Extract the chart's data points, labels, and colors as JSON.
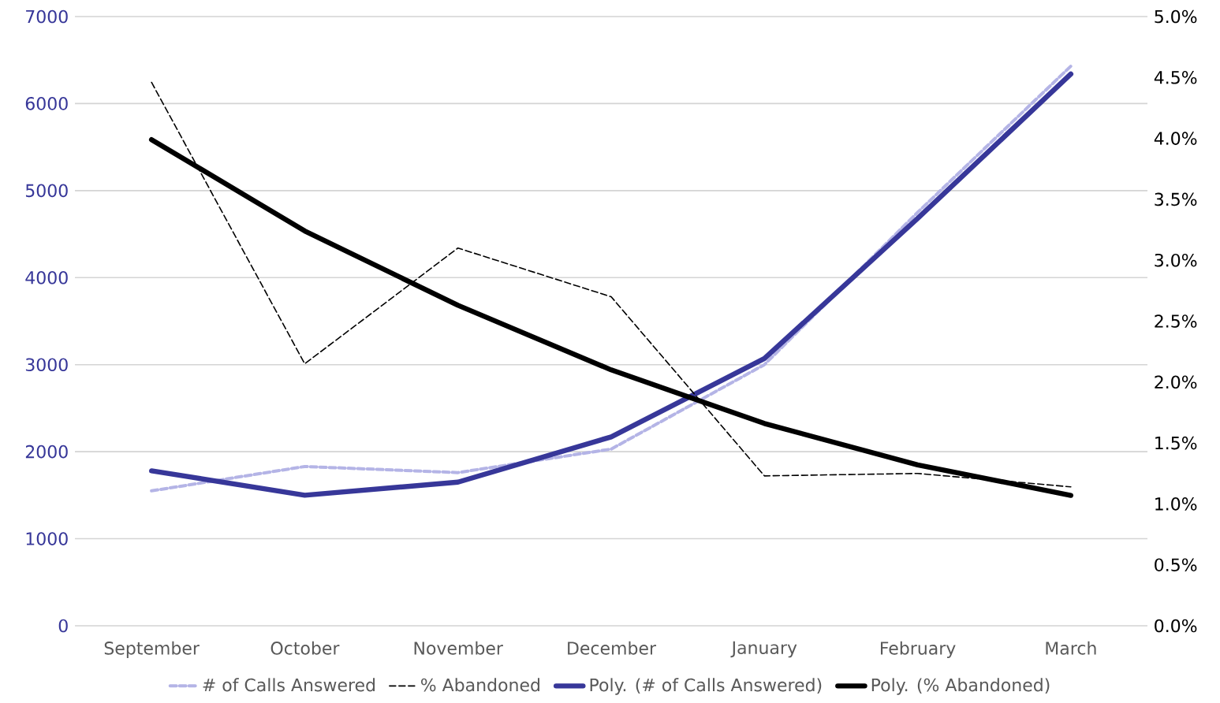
{
  "chart_data": {
    "type": "line",
    "categories": [
      "September",
      "October",
      "November",
      "December",
      "January",
      "February",
      "March"
    ],
    "series": [
      {
        "name": "# of Calls Answered",
        "color": "#b4b4e6",
        "line_style": "dashed",
        "values": [
          1550,
          1830,
          1760,
          2030,
          3000,
          4750,
          6430
        ]
      },
      {
        "name": "% Abandoned",
        "color": "#000000",
        "line_style": "dashed",
        "axis": "y2",
        "values": [
          4.46,
          2.15,
          3.1,
          2.7,
          1.23,
          1.25,
          1.14
        ]
      },
      {
        "name": "Poly. (# of Calls Answered)",
        "color": "#373799",
        "line_style": "solid",
        "values": [
          1780,
          1500,
          1650,
          2170,
          3070,
          4680,
          6340
        ]
      },
      {
        "name": "Poly. (% Abandoned)",
        "color": "#000000",
        "line_style": "solid",
        "axis": "y2",
        "values": [
          3.99,
          3.24,
          2.63,
          2.1,
          1.66,
          1.32,
          1.07
        ]
      }
    ],
    "ylim": [
      0,
      7000
    ],
    "yticks": [
      0,
      1000,
      2000,
      3000,
      4000,
      5000,
      6000,
      7000
    ],
    "y2lim": [
      0,
      5
    ],
    "y2ticks": [
      {
        "value": 0,
        "label": "0.0%"
      },
      {
        "value": 0.5,
        "label": "0.5%"
      },
      {
        "value": 1,
        "label": "1.0%"
      },
      {
        "value": 1.5,
        "label": "1.5%"
      },
      {
        "value": 2,
        "label": "2.0%"
      },
      {
        "value": 2.5,
        "label": "2.5%"
      },
      {
        "value": 3,
        "label": "3.0%"
      },
      {
        "value": 3.5,
        "label": "3.5%"
      },
      {
        "value": 4,
        "label": "4.0%"
      },
      {
        "value": 4.5,
        "label": "4.5%"
      },
      {
        "value": 5,
        "label": "5.0%"
      }
    ],
    "grid": "y",
    "legend": "bottom"
  }
}
